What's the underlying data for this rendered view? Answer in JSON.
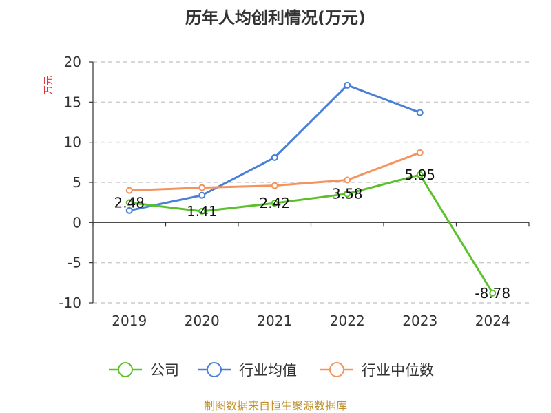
{
  "chart_data": {
    "type": "line",
    "title": "历年人均创利情况(万元)",
    "ylabel": "万元",
    "categories": [
      "2019",
      "2020",
      "2021",
      "2022",
      "2023",
      "2024"
    ],
    "ylim": [
      -10,
      20
    ],
    "yticks": [
      20,
      15,
      10,
      5,
      0,
      -5,
      -10
    ],
    "grid": true,
    "legend_position": "bottom",
    "series": [
      {
        "name": "公司",
        "values": [
          2.48,
          1.41,
          2.42,
          3.58,
          5.95,
          -8.78
        ],
        "labels": [
          "2.48",
          "1.41",
          "2.42",
          "3.58",
          "5.95",
          "-8.78"
        ],
        "color": "#5ac12a"
      },
      {
        "name": "行业均值",
        "values": [
          1.5,
          3.4,
          8.1,
          17.1,
          13.7,
          null
        ],
        "color": "#4a7fd6"
      },
      {
        "name": "行业中位数",
        "values": [
          4.0,
          4.35,
          4.6,
          5.3,
          8.7,
          null
        ],
        "color": "#f5935d"
      }
    ],
    "source": "制图数据来自恒生聚源数据库",
    "colors": {
      "ylabel": "#e0373f",
      "source": "#c0922f",
      "grid": "#cccccc",
      "axis": "#333333"
    }
  }
}
